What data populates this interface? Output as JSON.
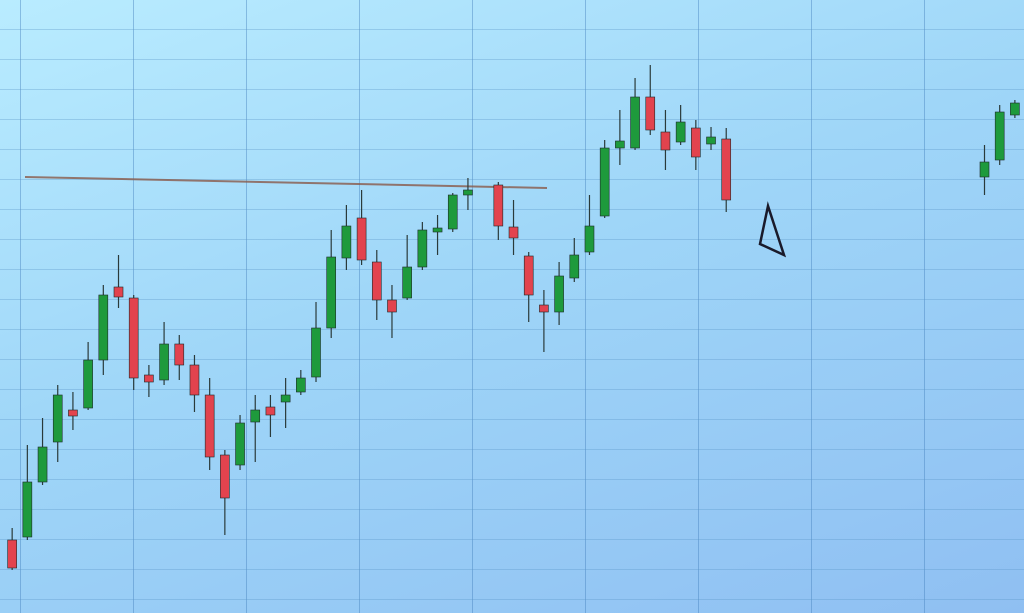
{
  "chart_data": {
    "type": "candlestick",
    "x": [
      0,
      1,
      2,
      3,
      4,
      5,
      6,
      7,
      8,
      9,
      10,
      11,
      12,
      13,
      14,
      15,
      16,
      17,
      18,
      19,
      20,
      21,
      22,
      23,
      24,
      25,
      26,
      27,
      28,
      29,
      30,
      32,
      33,
      34,
      35,
      36,
      37,
      38,
      39,
      40,
      41,
      42,
      43,
      44,
      45,
      46,
      47,
      64,
      65,
      66
    ],
    "open": [
      73,
      76,
      131,
      171,
      203,
      205,
      253,
      326,
      315,
      238,
      233,
      269,
      248,
      218,
      158,
      148,
      191,
      206,
      211,
      221,
      236,
      285,
      355,
      395,
      351,
      313,
      315,
      346,
      381,
      384,
      418,
      428,
      386,
      357,
      308,
      301,
      335,
      361,
      397,
      465,
      465,
      516,
      481,
      471,
      485,
      469,
      474,
      436,
      453,
      498
    ],
    "high": [
      85,
      168,
      195,
      228,
      221,
      271,
      328,
      358,
      318,
      248,
      291,
      278,
      258,
      235,
      163,
      198,
      218,
      218,
      235,
      243,
      311,
      383,
      408,
      423,
      363,
      328,
      378,
      391,
      398,
      420,
      435,
      431,
      413,
      361,
      323,
      351,
      375,
      418,
      473,
      503,
      535,
      548,
      503,
      508,
      493,
      486,
      485,
      468,
      508,
      513
    ],
    "low": [
      43,
      73,
      128,
      151,
      183,
      203,
      238,
      305,
      223,
      216,
      228,
      233,
      201,
      143,
      78,
      143,
      151,
      176,
      185,
      218,
      231,
      275,
      343,
      348,
      293,
      275,
      313,
      343,
      358,
      381,
      403,
      373,
      358,
      291,
      261,
      288,
      331,
      358,
      395,
      448,
      463,
      478,
      443,
      468,
      443,
      463,
      401,
      418,
      448,
      495
    ],
    "close": [
      45,
      131,
      166,
      218,
      197,
      253,
      318,
      316,
      235,
      231,
      269,
      248,
      218,
      156,
      115,
      190,
      203,
      198,
      218,
      235,
      285,
      356,
      387,
      353,
      313,
      301,
      346,
      383,
      385,
      418,
      423,
      387,
      375,
      318,
      301,
      337,
      358,
      387,
      465,
      472,
      516,
      483,
      463,
      491,
      456,
      476,
      413,
      451,
      501,
      510
    ],
    "xlim": [
      -0.8,
      66.6
    ],
    "ylim": [
      0,
      613
    ],
    "up_color": "#1e9a3c",
    "down_color": "#e2434e"
  }
}
